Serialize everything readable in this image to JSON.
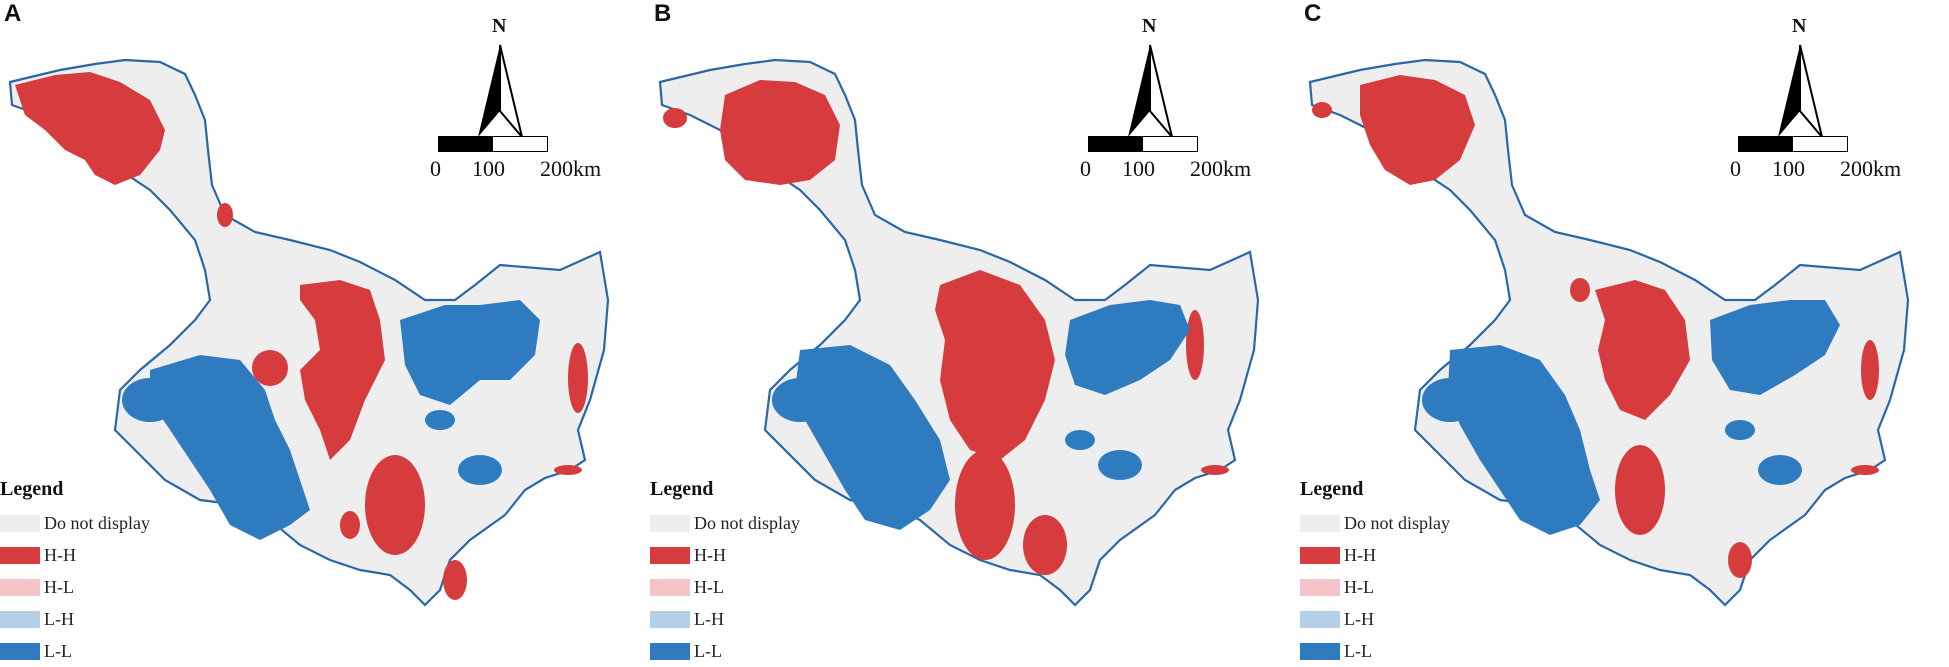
{
  "panels": [
    {
      "letter": "A"
    },
    {
      "letter": "B"
    },
    {
      "letter": "C"
    }
  ],
  "north_arrow": {
    "label": "N"
  },
  "scale_bar": {
    "labels": [
      "0",
      "100",
      "200km"
    ]
  },
  "legend": {
    "title": "Legend",
    "items": [
      {
        "label": "Do not display",
        "color": "#eeeeee"
      },
      {
        "label": "H-H",
        "color": "#d63c3d"
      },
      {
        "label": "H-L",
        "color": "#f4c4c9"
      },
      {
        "label": "L-H",
        "color": "#b4cfe6"
      },
      {
        "label": "L-L",
        "color": "#2f7bbf"
      }
    ]
  },
  "colors": {
    "boundary": "#2a67a6",
    "background_region": "#eeeeee"
  }
}
